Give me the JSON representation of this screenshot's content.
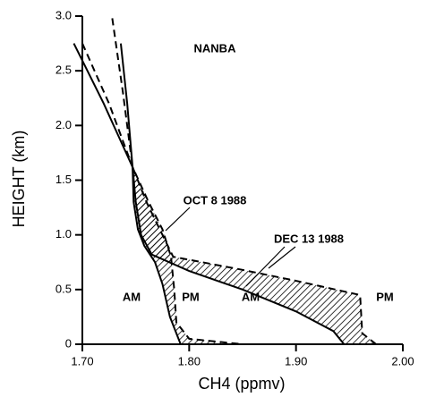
{
  "chart_data": {
    "type": "line",
    "title": "NANBA",
    "x_label": "CH4 (ppmv)",
    "y_label": "HEIGHT (km)",
    "xlim": [
      1.7,
      2.0
    ],
    "ylim": [
      0,
      3
    ],
    "xticks": [
      {
        "value": 1.7,
        "label": "1.70"
      },
      {
        "value": 1.8,
        "label": "1.80"
      },
      {
        "value": 1.9,
        "label": "1.90"
      },
      {
        "value": 2.0,
        "label": "2.00"
      }
    ],
    "yticks": [
      0,
      0.5,
      {
        "value": 1,
        "label": "1.0"
      },
      1.5,
      {
        "value": 2,
        "label": "2.0"
      },
      2.5,
      {
        "value": 3,
        "label": "3.0"
      }
    ],
    "annotations": [
      "OCT 8 1988",
      "DEC 13 1988",
      "AM",
      "PM",
      "AM",
      "PM"
    ],
    "series": [
      {
        "color": "#000000",
        "style": "solid",
        "x": [
          1.692,
          1.72,
          1.747,
          1.748,
          1.752,
          1.758,
          1.768,
          1.775,
          1.782,
          1.792
        ],
        "values": [
          2.75,
          2.2,
          1.62,
          1.3,
          1.05,
          0.9,
          0.75,
          0.55,
          0.25,
          0
        ]
      },
      {
        "color": "#000000",
        "style": "dashed",
        "x": [
          1.7,
          1.725,
          1.747,
          1.762,
          1.775,
          1.783,
          1.786,
          1.788,
          1.8,
          1.85
        ],
        "values": [
          2.75,
          2.2,
          1.62,
          1.3,
          1.05,
          0.8,
          0.5,
          0.2,
          0.05,
          0
        ]
      },
      {
        "color": "#000000",
        "style": "solid",
        "x": [
          1.736,
          1.742,
          1.747,
          1.75,
          1.755,
          1.765,
          1.8,
          1.85,
          1.9,
          1.935,
          1.945
        ],
        "values": [
          2.75,
          2.2,
          1.62,
          1.3,
          1.0,
          0.82,
          0.67,
          0.5,
          0.3,
          0.12,
          0
        ]
      },
      {
        "color": "#000000",
        "style": "dashed",
        "x": [
          1.728,
          1.738,
          1.747,
          1.76,
          1.775,
          1.785,
          1.85,
          1.9,
          1.96,
          1.962,
          1.975
        ],
        "values": [
          2.98,
          2.3,
          1.62,
          1.3,
          1.0,
          0.8,
          0.68,
          0.58,
          0.45,
          0.1,
          0
        ]
      }
    ]
  }
}
